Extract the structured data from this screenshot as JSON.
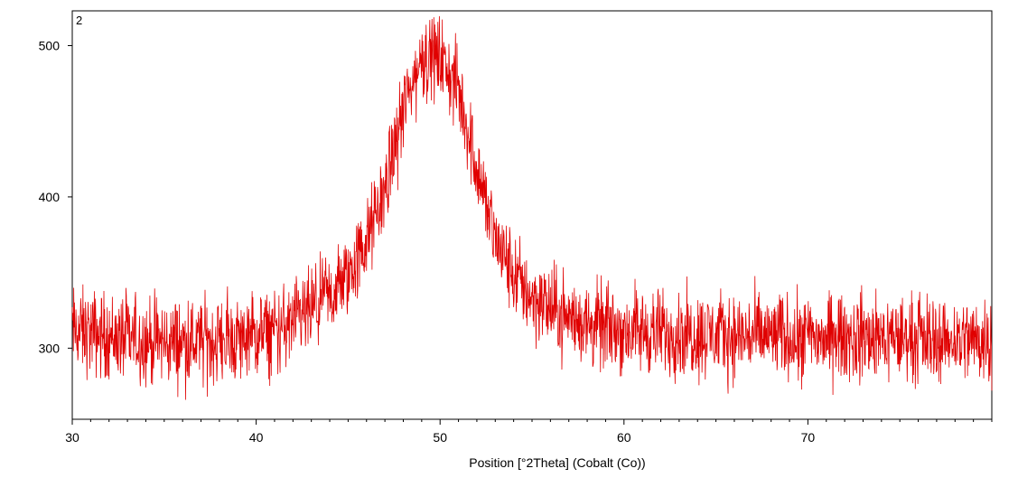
{
  "chart_data": {
    "type": "line",
    "panel_label": "2",
    "xlabel": "Position [°2Theta] (Cobalt (Co))",
    "ylabel": "",
    "xlim": [
      30,
      80
    ],
    "ylim": [
      253,
      523
    ],
    "x_ticks": [
      30,
      40,
      50,
      60,
      70
    ],
    "y_ticks": [
      300,
      400,
      500
    ],
    "x_tick_labels": [
      "30",
      "40",
      "50",
      "60",
      "70"
    ],
    "y_tick_labels": [
      "300",
      "400",
      "500"
    ],
    "x_minor_step": 1,
    "grid": false,
    "legend": false,
    "series": [
      {
        "color": "#e00000",
        "x_start": 30,
        "x_end": 80,
        "x_step": 1,
        "values": [
          312,
          310,
          308,
          306,
          305,
          304,
          304,
          304,
          305,
          306,
          308,
          311,
          316,
          324,
          334,
          348,
          370,
          405,
          458,
          492,
          492,
          470,
          420,
          372,
          348,
          334,
          326,
          320,
          316,
          314,
          312,
          311,
          310,
          310,
          309,
          309,
          308,
          308,
          308,
          308,
          307,
          307,
          307,
          307,
          307,
          307,
          306,
          306,
          306,
          306,
          306
        ],
        "noise_amplitude": 28
      }
    ]
  }
}
